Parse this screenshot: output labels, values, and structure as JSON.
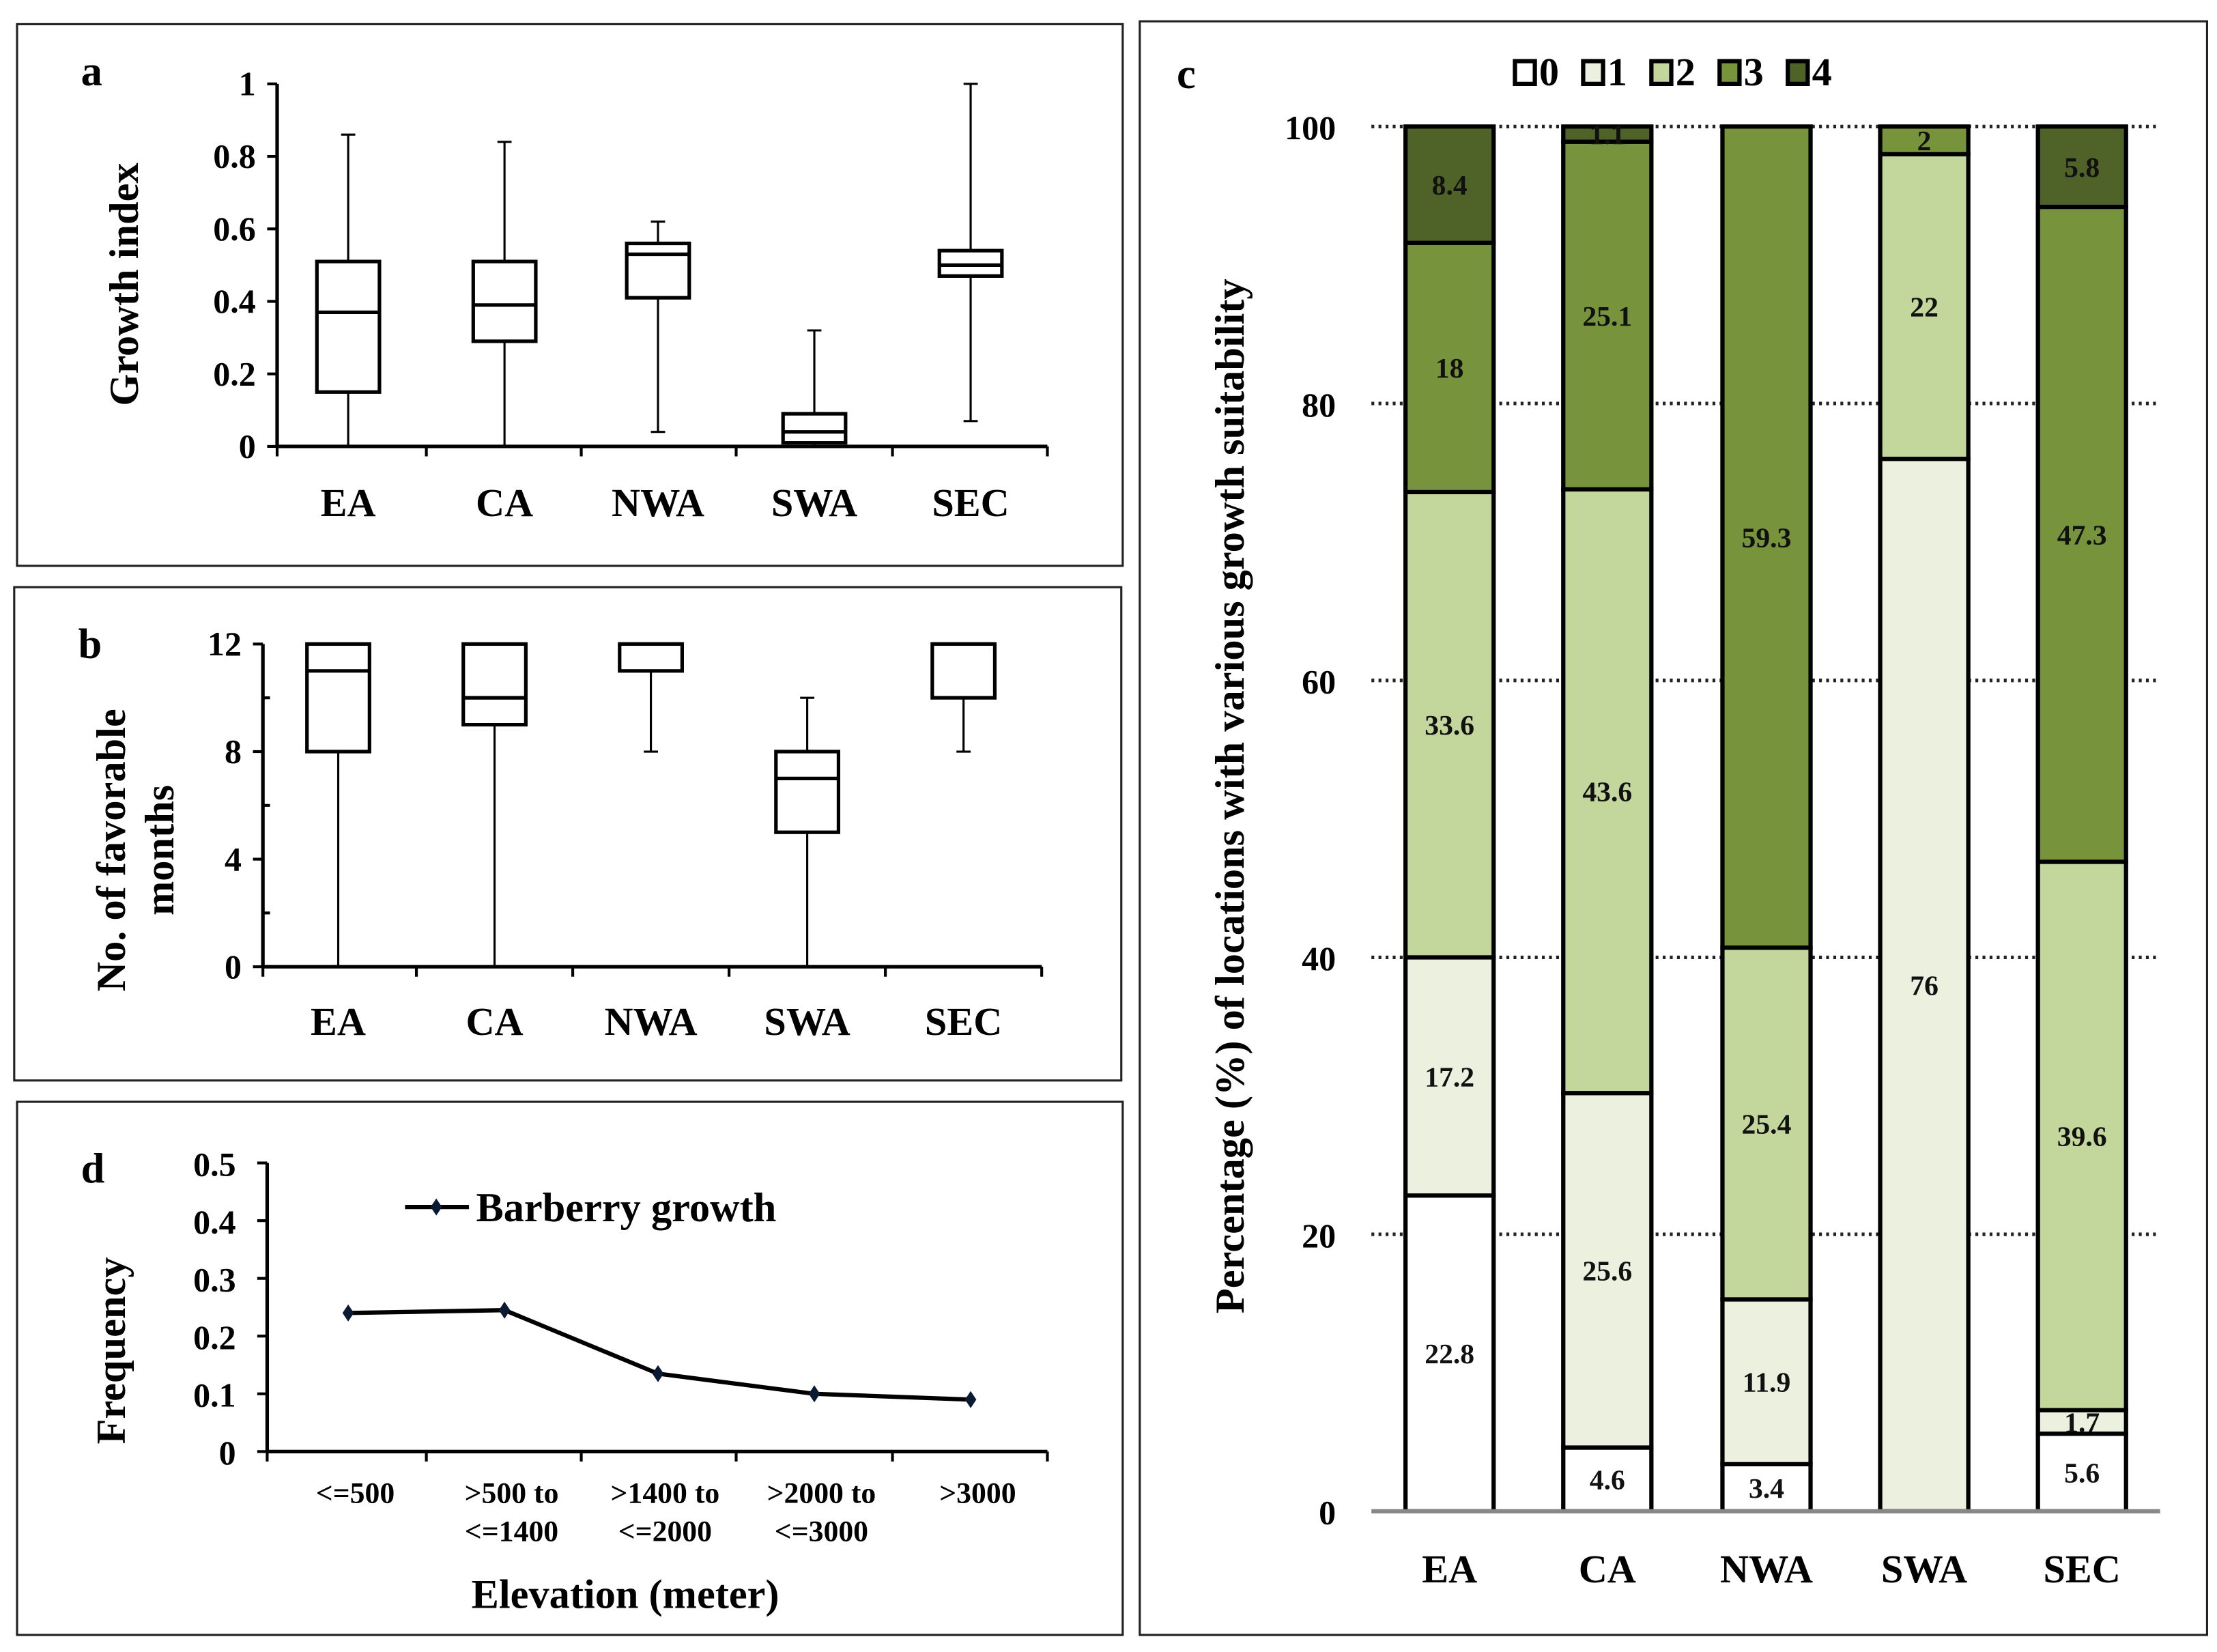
{
  "panels": {
    "a": {
      "letter": "a"
    },
    "b": {
      "letter": "b"
    },
    "c": {
      "letter": "c"
    },
    "d": {
      "letter": "d"
    }
  },
  "chart_data": [
    {
      "id": "a",
      "type": "boxplot",
      "ylabel": "Growth index",
      "ylim": [
        0,
        1
      ],
      "yticks": [
        "0",
        "0.2",
        "0.4",
        "0.6",
        "0.8",
        "1"
      ],
      "categories": [
        "EA",
        "CA",
        "NWA",
        "SWA",
        "SEC"
      ],
      "boxes": [
        {
          "min": 0,
          "q1": 0.15,
          "median": 0.37,
          "q3": 0.51,
          "max": 0.86
        },
        {
          "min": 0,
          "q1": 0.29,
          "median": 0.39,
          "q3": 0.51,
          "max": 0.84
        },
        {
          "min": 0.04,
          "q1": 0.41,
          "median": 0.53,
          "q3": 0.56,
          "max": 0.62
        },
        {
          "min": 0,
          "q1": 0.01,
          "median": 0.04,
          "q3": 0.09,
          "max": 0.32
        },
        {
          "min": 0.07,
          "q1": 0.47,
          "median": 0.5,
          "q3": 0.54,
          "max": 1.0
        }
      ]
    },
    {
      "id": "b",
      "type": "boxplot",
      "ylabel": [
        "No. of favorable",
        "months"
      ],
      "ylim": [
        0,
        12
      ],
      "yticks": [
        "0",
        "4",
        "8",
        "12"
      ],
      "categories": [
        "EA",
        "CA",
        "NWA",
        "SWA",
        "SEC"
      ],
      "boxes": [
        {
          "min": 0,
          "q1": 8,
          "median": 11,
          "q3": 12,
          "max": 12
        },
        {
          "min": 0,
          "q1": 9,
          "median": 10,
          "q3": 12,
          "max": 12
        },
        {
          "min": 8,
          "q1": 11,
          "median": 12,
          "q3": 12,
          "max": 12
        },
        {
          "min": 0,
          "q1": 5,
          "median": 7,
          "q3": 8,
          "max": 10
        },
        {
          "min": 8,
          "q1": 10,
          "median": 12,
          "q3": 12,
          "max": 12
        }
      ]
    },
    {
      "id": "c",
      "type": "stacked-bar",
      "ylabel": "Percentage (%) of locations with various growth suitability",
      "ylim": [
        0,
        100
      ],
      "yticks": [
        "0",
        "20",
        "40",
        "60",
        "80",
        "100"
      ],
      "grid": true,
      "legend_position": "top",
      "categories": [
        "EA",
        "CA",
        "NWA",
        "SWA",
        "SEC"
      ],
      "series": [
        {
          "name": "0",
          "color": "#FFFFFF",
          "values": [
            22.8,
            4.6,
            3.4,
            0,
            5.6
          ]
        },
        {
          "name": "1",
          "color": "#EBF1DE",
          "values": [
            17.2,
            25.6,
            11.9,
            76,
            1.7
          ]
        },
        {
          "name": "2",
          "color": "#C3D69B",
          "values": [
            33.6,
            43.6,
            25.4,
            22,
            39.6
          ]
        },
        {
          "name": "3",
          "color": "#77933C",
          "values": [
            18,
            25.1,
            59.3,
            2,
            47.3
          ]
        },
        {
          "name": "4",
          "color": "#4F6228",
          "values": [
            8.4,
            1.1,
            0,
            0,
            5.8
          ]
        }
      ],
      "labels": [
        [
          "22.8",
          "4.6",
          "3.4",
          "",
          "5.6"
        ],
        [
          "17.2",
          "25.6",
          "11.9",
          "76",
          "1.7"
        ],
        [
          "33.6",
          "43.6",
          "25.4",
          "22",
          "39.6"
        ],
        [
          "18",
          "25.1",
          "59.3",
          "2",
          "47.3"
        ],
        [
          "8.4",
          "1.1",
          "",
          "",
          "5.8"
        ]
      ]
    },
    {
      "id": "d",
      "type": "line",
      "xlabel": "Elevation (meter)",
      "ylabel": "Frequency",
      "ylim": [
        0,
        0.5
      ],
      "yticks": [
        "0",
        "0.1",
        "0.2",
        "0.3",
        "0.4",
        "0.5"
      ],
      "categories": [
        [
          "<=500"
        ],
        [
          ">500 to",
          "<=1400"
        ],
        [
          ">1400 to",
          "<=2000"
        ],
        [
          ">2000 to",
          "<=3000"
        ],
        [
          ">3000"
        ]
      ],
      "series": [
        {
          "name": "Barberry growth",
          "values": [
            0.24,
            0.245,
            0.135,
            0.1,
            0.09
          ]
        }
      ],
      "legend_position": "top-left"
    }
  ]
}
